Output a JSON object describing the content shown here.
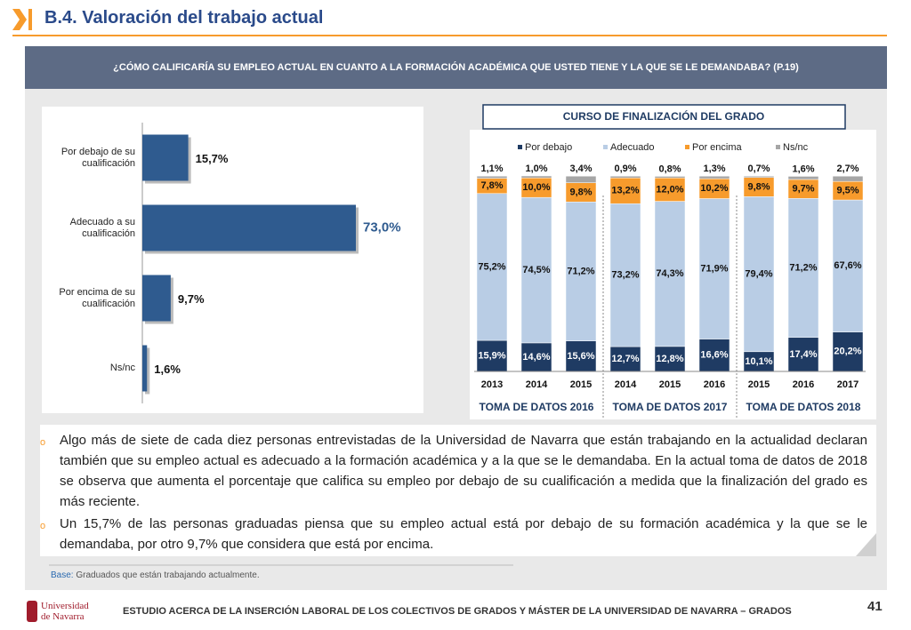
{
  "header": {
    "title": "B.4. Valoración del trabajo actual",
    "question": "¿CÓMO CALIFICARÍA SU EMPLEO ACTUAL EN CUANTO A LA FORMACIÓN ACADÉMICA QUE USTED TIENE Y LA QUE SE LE DEMANDABA? (P.19)"
  },
  "chart_data": [
    {
      "type": "hbar",
      "categories": [
        "Por debajo de su cualificación",
        "Adecuado a su cualificación",
        "Por encima de su cualificación",
        "Ns/nc"
      ],
      "values": [
        15.7,
        73.0,
        9.7,
        1.6
      ],
      "value_labels": [
        "15,7%",
        "73,0%",
        "9,7%",
        "1,6%"
      ],
      "color": "#2f5b8f"
    },
    {
      "type": "stacked_bar",
      "title": "CURSO DE FINALIZACIÓN DEL GRADO",
      "categories": [
        "2013",
        "2014",
        "2015",
        "2014",
        "2015",
        "2016",
        "2015",
        "2016",
        "2017"
      ],
      "groups": [
        "TOMA DE DATOS 2016",
        "TOMA DE DATOS 2017",
        "TOMA DE DATOS 2018"
      ],
      "series": [
        {
          "name": "Por debajo",
          "color": "#1f3b63",
          "values": [
            15.9,
            14.6,
            15.6,
            12.7,
            12.8,
            16.6,
            10.1,
            17.4,
            20.2
          ],
          "value_labels": [
            "15,9%",
            "14,6%",
            "15,6%",
            "12,7%",
            "12,8%",
            "16,6%",
            "10,1%",
            "17,4%",
            "20,2%"
          ]
        },
        {
          "name": "Adecuado",
          "color": "#b9cde5",
          "values": [
            75.2,
            74.5,
            71.2,
            73.2,
            74.3,
            71.9,
            79.4,
            71.2,
            67.6
          ],
          "value_labels": [
            "75,2%",
            "74,5%",
            "71,2%",
            "73,2%",
            "74,3%",
            "71,9%",
            "79,4%",
            "71,2%",
            "67,6%"
          ]
        },
        {
          "name": "Por encima",
          "color": "#f79b2c",
          "values": [
            7.8,
            10.0,
            9.8,
            13.2,
            12.0,
            10.2,
            9.8,
            9.7,
            9.5
          ],
          "value_labels": [
            "7,8%",
            "10,0%",
            "9,8%",
            "13,2%",
            "12,0%",
            "10,2%",
            "9,8%",
            "9,7%",
            "9,5%"
          ]
        },
        {
          "name": "Ns/nc",
          "color": "#a6a6a6",
          "values": [
            1.1,
            1.0,
            3.4,
            0.9,
            0.8,
            1.3,
            0.7,
            1.6,
            2.7
          ],
          "value_labels": [
            "1,1%",
            "1,0%",
            "3,4%",
            "0,9%",
            "0,8%",
            "1,3%",
            "0,7%",
            "1,6%",
            "2,7%"
          ]
        }
      ]
    }
  ],
  "bullets": [
    "Algo más de siete de cada diez personas entrevistadas de la Universidad de Navarra que están trabajando en la actualidad declaran también que su empleo actual es adecuado a la formación académica y a la que se le demandaba. En la actual toma de datos de 2018 se observa que aumenta el porcentaje que califica su empleo por debajo de su cualificación a medida que la finalización del grado es más reciente.",
    "Un 15,7% de las personas graduadas piensa que su empleo actual está por debajo de su formación académica y la que se le demandaba, por otro 9,7% que considera que está por encima."
  ],
  "base": {
    "label": "Base:",
    "text": "Graduados que están trabajando actualmente."
  },
  "footer": {
    "logo": [
      "Universidad",
      "de Navarra"
    ],
    "text": "ESTUDIO ACERCA DE LA INSERCIÓN LABORAL DE LOS COLECTIVOS DE GRADOS Y MÁSTER DE LA UNIVERSIDAD DE NAVARRA – GRADOS",
    "page_number": 41
  }
}
